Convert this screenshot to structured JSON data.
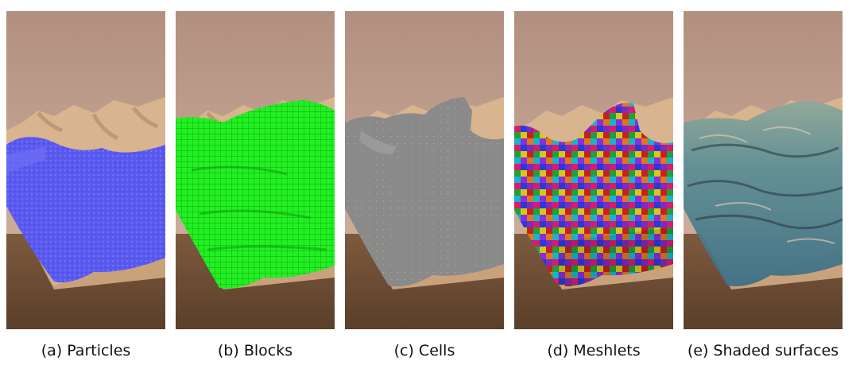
{
  "figure": {
    "panels": [
      {
        "caption": "(a) Particles",
        "overlay": "particles",
        "overlay_color": "#5a5af0"
      },
      {
        "caption": "(b) Blocks",
        "overlay": "blocks",
        "overlay_color": "#22f022"
      },
      {
        "caption": "(c) Cells",
        "overlay": "cells",
        "overlay_color": "#8a8a8a"
      },
      {
        "caption": "(d) Meshlets",
        "overlay": "meshlets",
        "overlay_color": "#7b2cc4"
      },
      {
        "caption": "(e) Shaded surfaces",
        "overlay": "shaded",
        "overlay_color": "#5e8f95"
      }
    ],
    "colors": {
      "sky_top": "#b28f80",
      "sky_bottom": "#d7b9a3",
      "terrain": "#d8b48f",
      "terrain_shadow": "#b8926f",
      "floor_top": "#7d5a3e",
      "floor_bottom": "#5a3f2a"
    }
  }
}
